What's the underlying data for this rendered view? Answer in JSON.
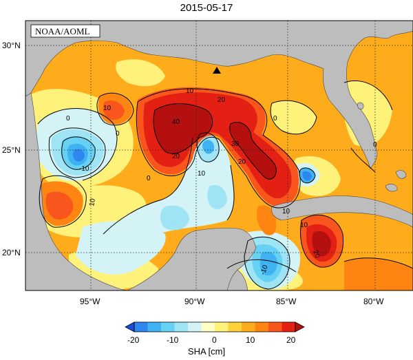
{
  "title": "2015-05-17",
  "credit": "NOAA/AOML",
  "lat_labels": [
    "30°N",
    "25°N",
    "20°N"
  ],
  "lon_labels": [
    "95°W",
    "90°W",
    "85°W",
    "80°W"
  ],
  "contour_labels": [
    "10",
    "10",
    "0",
    "0",
    "-10",
    "10",
    "40",
    "20",
    "20",
    "30",
    "20",
    "0",
    "10",
    "-10",
    "10",
    "20",
    "0",
    "0",
    "10"
  ],
  "colorbar": {
    "ticks": [
      "-20",
      "-10",
      "0",
      "10",
      "20"
    ],
    "label": "SHA [cm]",
    "colors": [
      "#1d4bd9",
      "#2e86ef",
      "#3fb2f2",
      "#66d1f3",
      "#9fe4f4",
      "#d3f3f6",
      "#ffffc4",
      "#fff27a",
      "#ffd13a",
      "#ffac1c",
      "#ff8512",
      "#f9561d",
      "#e42014",
      "#b51010"
    ]
  },
  "colors": {
    "land": "#bdbdbd",
    "background_field": "#ffac1c",
    "marker": "#000000"
  },
  "marker_icon": "triangle-marker-icon"
}
